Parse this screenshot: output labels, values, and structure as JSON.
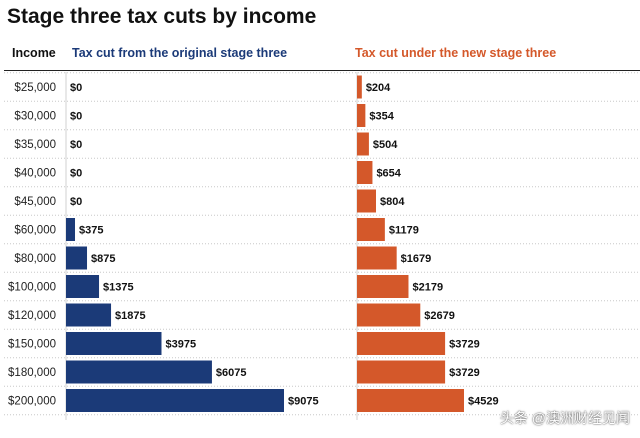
{
  "chart_data": {
    "type": "bar",
    "orientation": "horizontal",
    "title": "Stage three tax cuts by income",
    "category_header": "Income",
    "categories": [
      "$25,000",
      "$30,000",
      "$35,000",
      "$40,000",
      "$45,000",
      "$60,000",
      "$80,000",
      "$100,000",
      "$120,000",
      "$150,000",
      "$180,000",
      "$200,000"
    ],
    "series": [
      {
        "name": "Tax cut from the original stage three",
        "color": "#1b3a78",
        "values": [
          0,
          0,
          0,
          0,
          0,
          375,
          875,
          1375,
          1875,
          3975,
          6075,
          9075
        ],
        "labels": [
          "$0",
          "$0",
          "$0",
          "$0",
          "$0",
          "$375",
          "$875",
          "$1375",
          "$1875",
          "$3975",
          "$6075",
          "$9075"
        ]
      },
      {
        "name": "Tax cut under the new stage three",
        "color": "#d4582a",
        "values": [
          204,
          354,
          504,
          654,
          804,
          1179,
          1679,
          2179,
          2679,
          3729,
          3729,
          4529
        ],
        "labels": [
          "$204",
          "$354",
          "$504",
          "$654",
          "$804",
          "$1179",
          "$1679",
          "$2179",
          "$2679",
          "$3729",
          "$3729",
          "$4529"
        ]
      }
    ],
    "grid": "horizontal-dotted",
    "legend": "column-headers"
  },
  "watermark": "头条 @澳洲财经见闻"
}
